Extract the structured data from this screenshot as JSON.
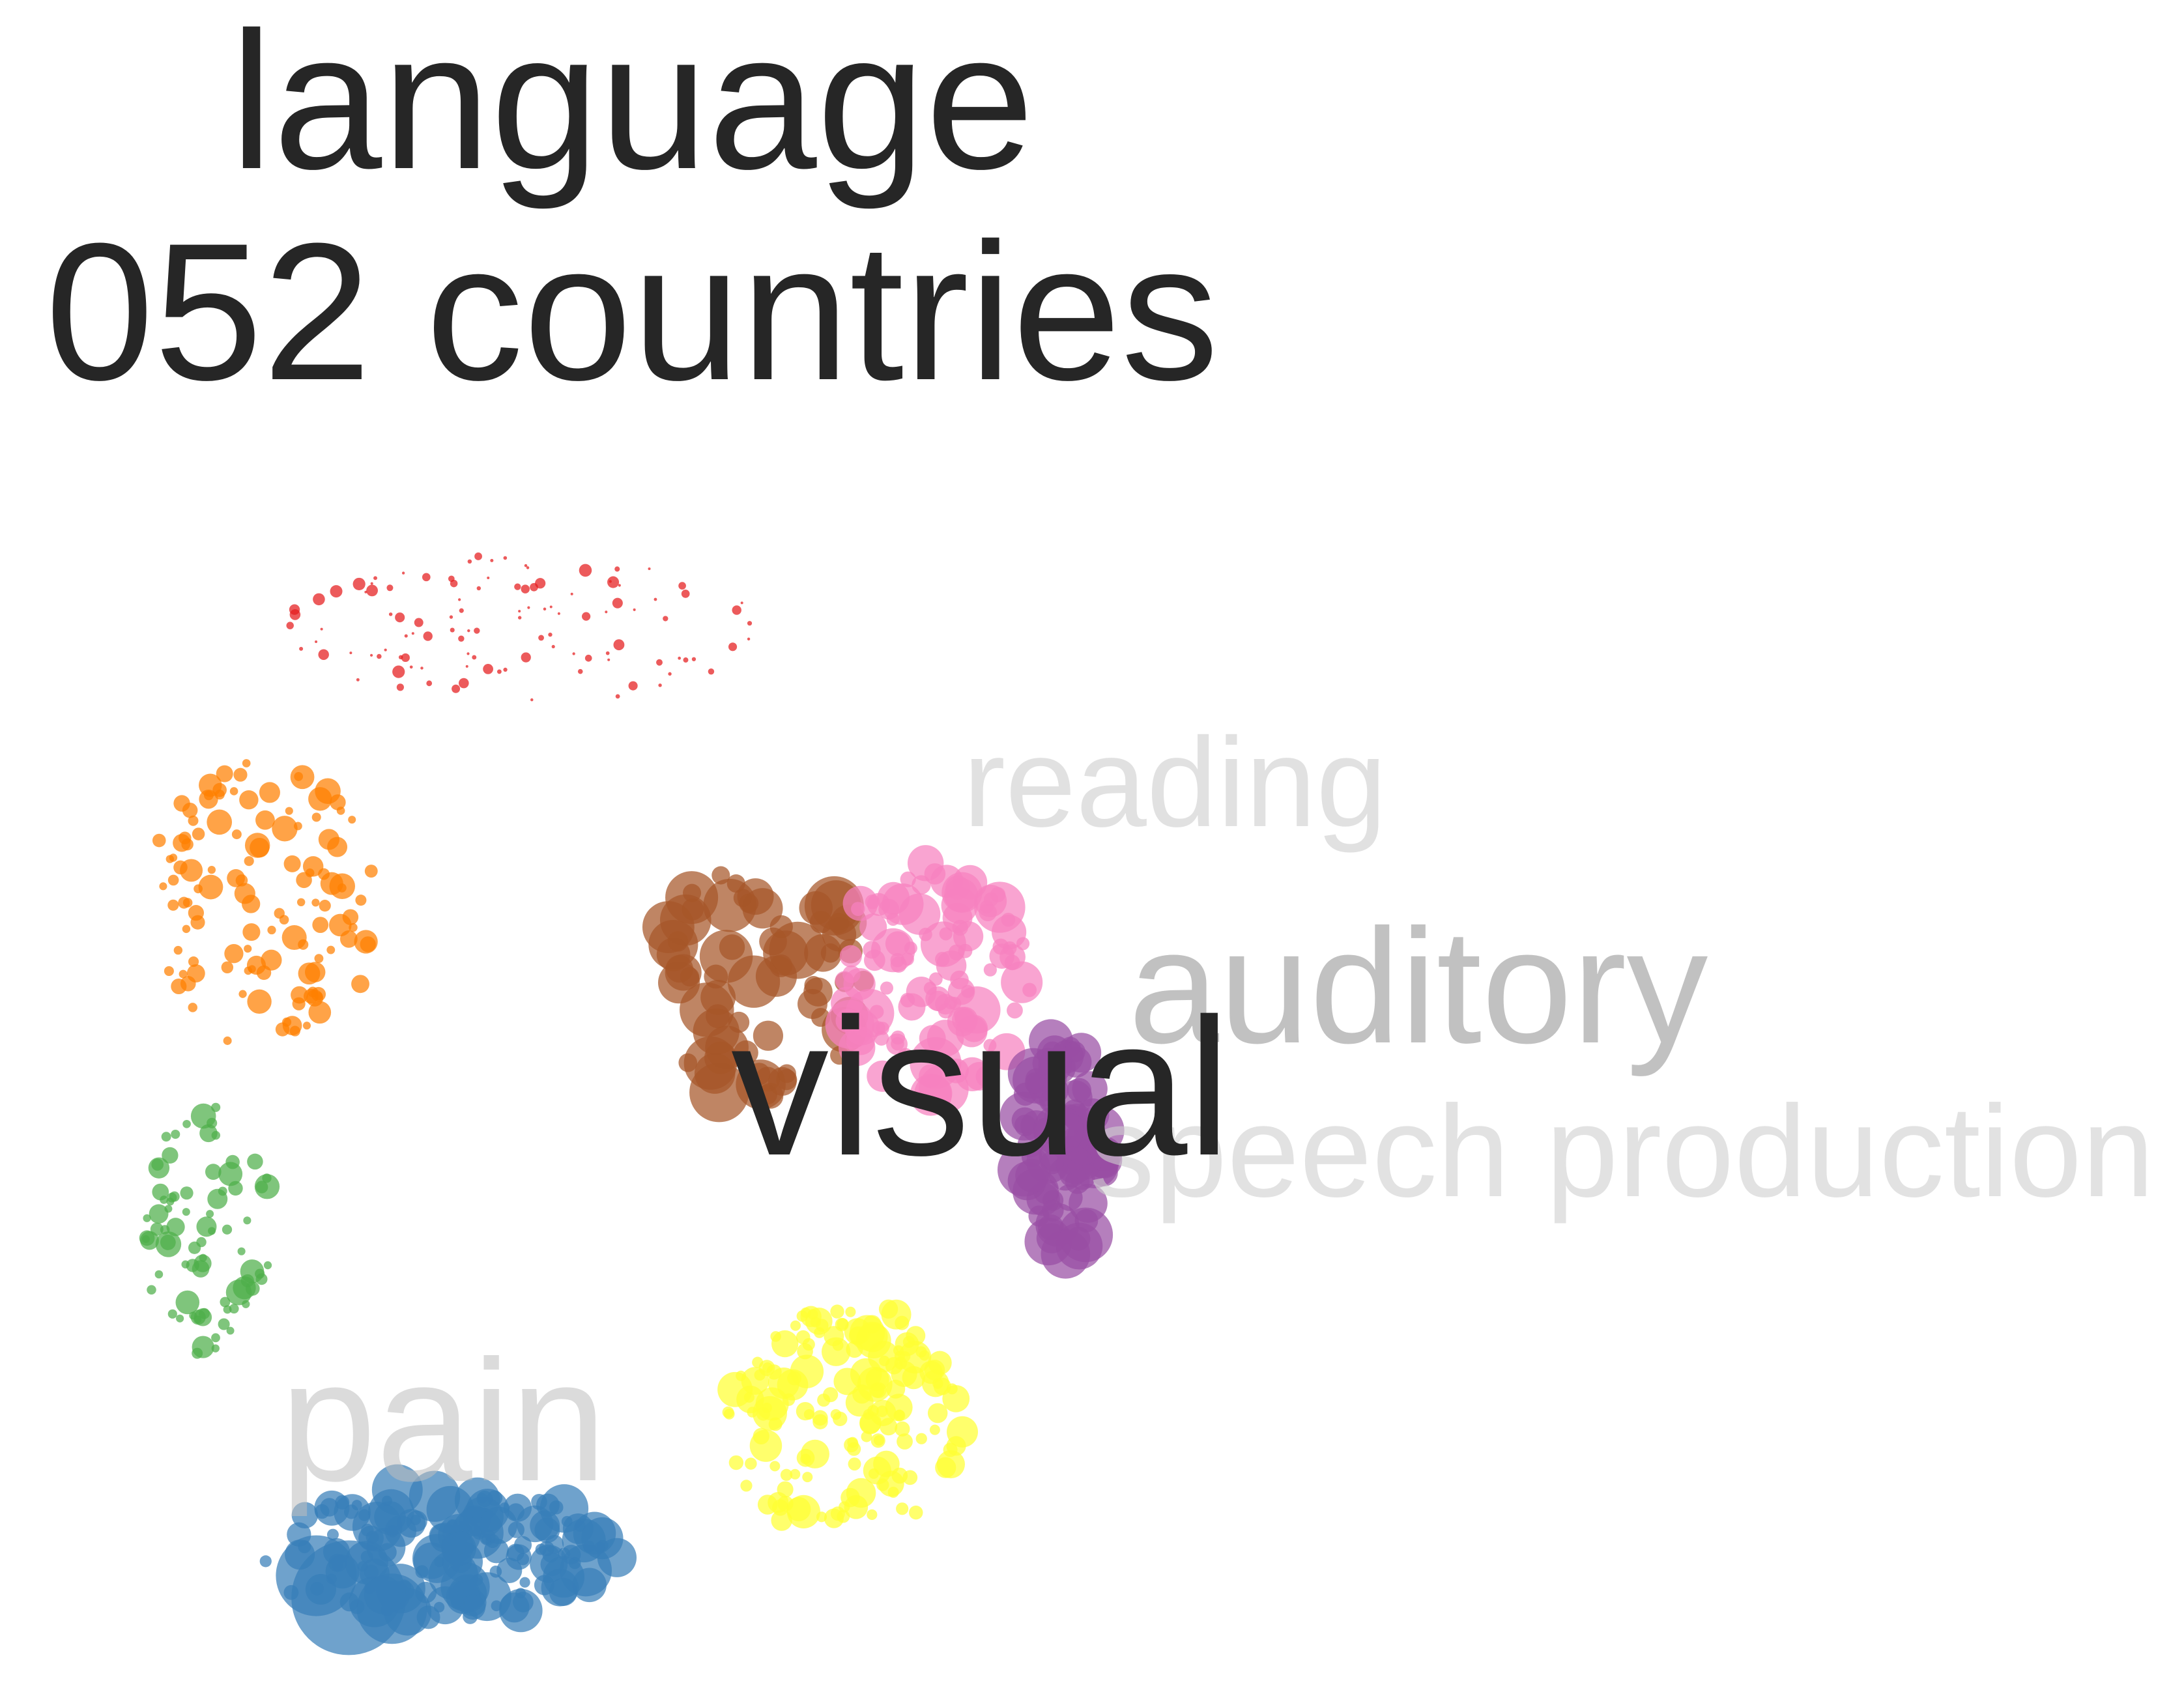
{
  "chart_data": {
    "type": "scatter",
    "title_lines": [
      "language",
      "052 countries"
    ],
    "highlighted_label": "visual",
    "clusters": [
      {
        "name": "visual",
        "color": "#a65628",
        "center": [
          60,
          40
        ],
        "label_shown": true
      },
      {
        "name": "reading",
        "color": "#f781bf",
        "center": [
          76,
          40
        ],
        "label_shown": true
      },
      {
        "name": "auditory",
        "color": "#984ea3",
        "center": [
          88,
          55
        ],
        "label_shown": true
      },
      {
        "name": "speech production",
        "color": "#ffff33",
        "center": [
          68,
          80
        ],
        "label_shown": true
      },
      {
        "name": "pain",
        "color": "#377eb8",
        "center": [
          30,
          92
        ],
        "label_shown": true
      },
      {
        "name": "",
        "color": "#e41a1c",
        "center": [
          38,
          8
        ],
        "label_shown": false
      },
      {
        "name": "",
        "color": "#ff7f00",
        "center": [
          14,
          33
        ],
        "label_shown": false
      },
      {
        "name": "",
        "color": "#4daf4a",
        "center": [
          9,
          63
        ],
        "label_shown": false
      }
    ],
    "topic_labels": [
      {
        "text": "reading",
        "emphasis": "faint"
      },
      {
        "text": "auditory",
        "emphasis": "medium"
      },
      {
        "text": "visual",
        "emphasis": "strong"
      },
      {
        "text": "speech production",
        "emphasis": "faint"
      },
      {
        "text": "pain",
        "emphasis": "faint"
      }
    ],
    "xlim": [
      0,
      100
    ],
    "ylim": [
      0,
      100
    ],
    "grid": false,
    "legend": "none"
  }
}
